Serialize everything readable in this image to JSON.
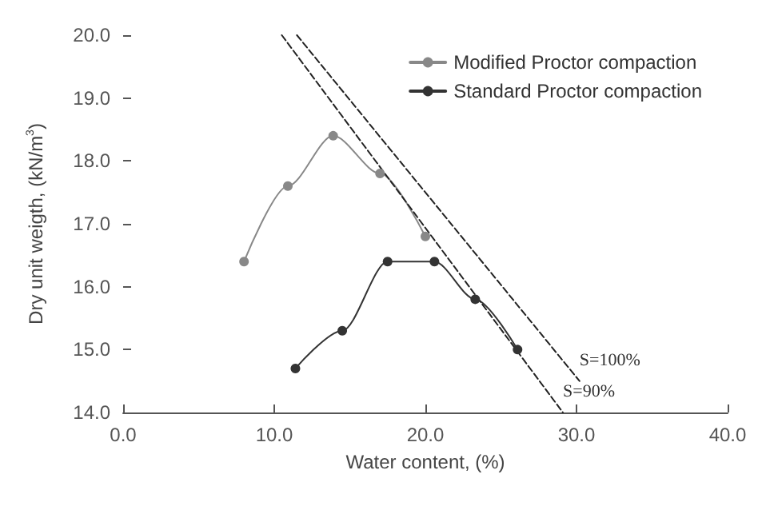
{
  "chart_data": {
    "type": "line",
    "xlabel": "Water content, (%)",
    "ylabel": "Dry unit weigth, (kN/m$^{3}$)",
    "xlim": [
      0,
      40
    ],
    "xticks": [
      {
        "value": 0,
        "label": "0.0"
      },
      {
        "value": 10,
        "label": "10.0"
      },
      {
        "value": 20,
        "label": "20.0"
      },
      {
        "value": 30,
        "label": "30.0"
      },
      {
        "value": 40,
        "label": "40.0"
      }
    ],
    "ylim": [
      14,
      20
    ],
    "yticks": [
      {
        "value": 14,
        "label": "14.0"
      },
      {
        "value": 15,
        "label": "15.0"
      },
      {
        "value": 16,
        "label": "16.0"
      },
      {
        "value": 17,
        "label": "17.0"
      },
      {
        "value": 18,
        "label": "18.0"
      },
      {
        "value": 19,
        "label": "19.0"
      },
      {
        "value": 20,
        "label": "20.0"
      }
    ],
    "grid": false,
    "legend": "top right",
    "series": [
      {
        "name": "Modified Proctor compaction",
        "color": "#888888",
        "marker": "circle",
        "line_style": "solid",
        "x": [
          8.0,
          10.9,
          13.9,
          17.0,
          20.0
        ],
        "values": [
          16.4,
          17.6,
          18.4,
          17.8,
          16.8
        ]
      },
      {
        "name": "Standard Proctor compaction",
        "color": "#333333",
        "marker": "circle",
        "line_style": "solid",
        "x": [
          11.4,
          14.5,
          17.5,
          20.6,
          23.3,
          26.1
        ],
        "values": [
          14.7,
          15.3,
          16.4,
          16.4,
          15.8,
          15.0
        ]
      },
      {
        "name": "S=100%",
        "color": "#222222",
        "marker": "none",
        "line_style": "dashed",
        "x": [
          11.5,
          30.2
        ],
        "values": [
          20.0,
          14.5
        ]
      },
      {
        "name": "S=90%",
        "color": "#222222",
        "marker": "none",
        "line_style": "dashed",
        "x": [
          10.5,
          29.1
        ],
        "values": [
          20.0,
          14.0
        ]
      }
    ]
  }
}
